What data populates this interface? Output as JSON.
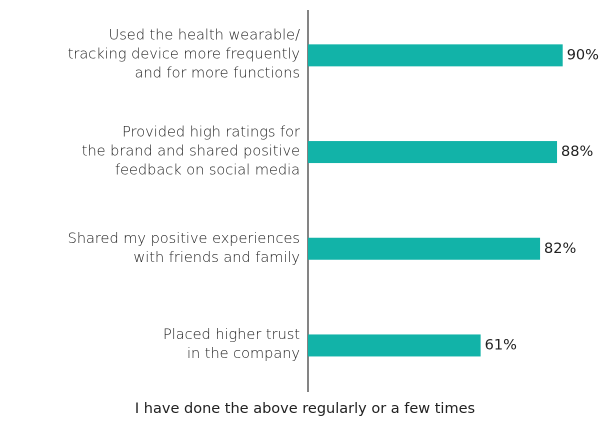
{
  "chart_data": {
    "type": "bar",
    "orientation": "horizontal",
    "categories": [
      "Used the health wearable/\ntracking device more frequently\nand for more functions",
      "Provided high ratings for\nthe brand and shared positive\nfeedback on social media",
      "Shared my positive experiences\nwith friends and family",
      "Placed higher trust\nin the company"
    ],
    "values": [
      90,
      88,
      82,
      61
    ],
    "value_labels": [
      "90%",
      "88%",
      "82%",
      "61%"
    ],
    "color": "#12b3a8",
    "xlim": [
      0,
      100
    ],
    "caption": "I have done the above regularly or a few times"
  }
}
